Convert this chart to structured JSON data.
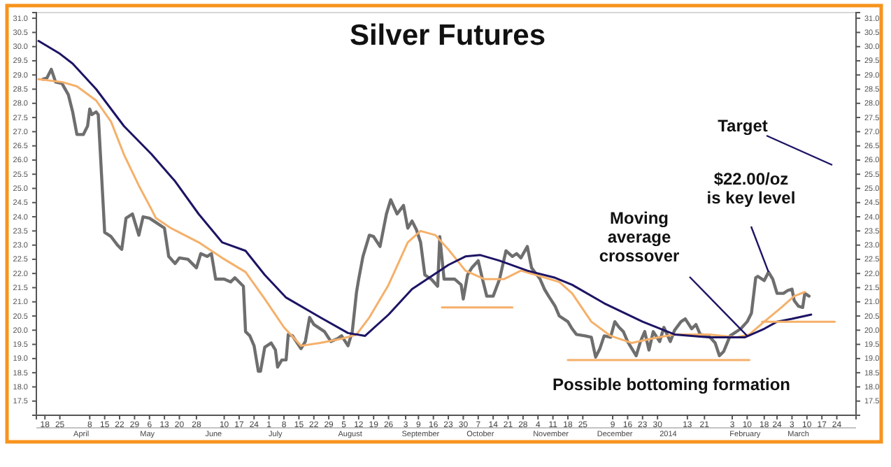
{
  "chart_data": {
    "type": "line",
    "title": "Silver Futures",
    "xlim": [
      "2013-03-14",
      "2014-04-02"
    ],
    "xticks": [
      {
        "value": "2013-03-18",
        "label": "18"
      },
      {
        "value": "2013-03-25",
        "label": "25"
      },
      {
        "value": "2013-04-08",
        "label": "8"
      },
      {
        "value": "2013-04-15",
        "label": "15"
      },
      {
        "value": "2013-04-22",
        "label": "22"
      },
      {
        "value": "2013-04-29",
        "label": "29"
      },
      {
        "value": "2013-05-06",
        "label": "6"
      },
      {
        "value": "2013-05-13",
        "label": "13"
      },
      {
        "value": "2013-05-20",
        "label": "20"
      },
      {
        "value": "2013-05-28",
        "label": "28"
      },
      {
        "value": "2013-06-10",
        "label": "10"
      },
      {
        "value": "2013-06-17",
        "label": "17"
      },
      {
        "value": "2013-06-24",
        "label": "24"
      },
      {
        "value": "2013-07-01",
        "label": "1"
      },
      {
        "value": "2013-07-08",
        "label": "8"
      },
      {
        "value": "2013-07-15",
        "label": "15"
      },
      {
        "value": "2013-07-22",
        "label": "22"
      },
      {
        "value": "2013-07-29",
        "label": "29"
      },
      {
        "value": "2013-08-05",
        "label": "5"
      },
      {
        "value": "2013-08-12",
        "label": "12"
      },
      {
        "value": "2013-08-19",
        "label": "19"
      },
      {
        "value": "2013-08-26",
        "label": "26"
      },
      {
        "value": "2013-09-03",
        "label": "3"
      },
      {
        "value": "2013-09-09",
        "label": "9"
      },
      {
        "value": "2013-09-16",
        "label": "16"
      },
      {
        "value": "2013-09-23",
        "label": "23"
      },
      {
        "value": "2013-09-30",
        "label": "30"
      },
      {
        "value": "2013-10-07",
        "label": "7"
      },
      {
        "value": "2013-10-14",
        "label": "14"
      },
      {
        "value": "2013-10-21",
        "label": "21"
      },
      {
        "value": "2013-10-28",
        "label": "28"
      },
      {
        "value": "2013-11-04",
        "label": "4"
      },
      {
        "value": "2013-11-11",
        "label": "11"
      },
      {
        "value": "2013-11-18",
        "label": "18"
      },
      {
        "value": "2013-11-25",
        "label": "25"
      },
      {
        "value": "2013-12-09",
        "label": "9"
      },
      {
        "value": "2013-12-16",
        "label": "16"
      },
      {
        "value": "2013-12-23",
        "label": "23"
      },
      {
        "value": "2013-12-30",
        "label": "30"
      },
      {
        "value": "2014-01-13",
        "label": "13"
      },
      {
        "value": "2014-01-21",
        "label": "21"
      },
      {
        "value": "2014-02-03",
        "label": "3"
      },
      {
        "value": "2014-02-10",
        "label": "10"
      },
      {
        "value": "2014-02-18",
        "label": "18"
      },
      {
        "value": "2014-02-24",
        "label": "24"
      },
      {
        "value": "2014-03-03",
        "label": "3"
      },
      {
        "value": "2014-03-10",
        "label": "10"
      },
      {
        "value": "2014-03-17",
        "label": "17"
      },
      {
        "value": "2014-03-24",
        "label": "24"
      }
    ],
    "x2lim": [
      "2013-03-14",
      "2014-04-02"
    ],
    "x2ticks": [
      {
        "value": "2013-04-04",
        "label": "April"
      },
      {
        "value": "2013-05-05",
        "label": "May"
      },
      {
        "value": "2013-06-05",
        "label": "June"
      },
      {
        "value": "2013-07-04",
        "label": "July"
      },
      {
        "value": "2013-08-08",
        "label": "August"
      },
      {
        "value": "2013-09-10",
        "label": "September"
      },
      {
        "value": "2013-10-08",
        "label": "October"
      },
      {
        "value": "2013-11-10",
        "label": "November"
      },
      {
        "value": "2013-12-10",
        "label": "December"
      },
      {
        "value": "2014-01-04",
        "label": "2014"
      },
      {
        "value": "2014-02-09",
        "label": "February"
      },
      {
        "value": "2014-03-06",
        "label": "March"
      }
    ],
    "ylim": [
      17.0,
      31.2
    ],
    "yticks": [
      17.5,
      {
        "value": 18,
        "label": "18.0"
      },
      18.5,
      {
        "value": 19,
        "label": "19.0"
      },
      19.5,
      {
        "value": 20,
        "label": "20.0"
      },
      20.5,
      {
        "value": 21,
        "label": "21.0"
      },
      21.5,
      {
        "value": 22,
        "label": "22.0"
      },
      22.5,
      {
        "value": 23,
        "label": "23.0"
      },
      23.5,
      {
        "value": 24,
        "label": "24.0"
      },
      24.5,
      {
        "value": 25,
        "label": "25.0"
      },
      25.5,
      {
        "value": 26,
        "label": "26.0"
      },
      26.5,
      {
        "value": 27,
        "label": "27.0"
      },
      27.5,
      {
        "value": 28,
        "label": "28.0"
      },
      28.5,
      {
        "value": 29,
        "label": "29.0"
      },
      29.5,
      {
        "value": 30,
        "label": "30.0"
      },
      30.5,
      {
        "value": 31,
        "label": "31.0"
      }
    ],
    "y2lim": [
      17.0,
      31.2
    ],
    "y2ticks": [
      17.5,
      {
        "value": 18,
        "label": "18.0"
      },
      18.5,
      {
        "value": 19,
        "label": "19.0"
      },
      19.5,
      {
        "value": 20,
        "label": "20.0"
      },
      20.5,
      {
        "value": 21,
        "label": "21.0"
      },
      21.5,
      {
        "value": 22,
        "label": "22.0"
      },
      22.5,
      {
        "value": 23,
        "label": "23.0"
      },
      23.5,
      {
        "value": 24,
        "label": "24.0"
      },
      24.5,
      {
        "value": 25,
        "label": "25.0"
      },
      25.5,
      {
        "value": 26,
        "label": "26.0"
      },
      26.5,
      {
        "value": 27,
        "label": "27.0"
      },
      27.5,
      {
        "value": 28,
        "label": "28.0"
      },
      28.5,
      {
        "value": 29,
        "label": "29.0"
      },
      29.5,
      {
        "value": 30,
        "label": "30.0"
      },
      30.5,
      {
        "value": 31,
        "label": "31.0"
      }
    ],
    "series": [
      {
        "type": "line",
        "color": "#6e6e6e",
        "x": [
          "2013-03-17",
          "2013-03-19",
          "2013-03-21",
          "2013-03-23",
          "2013-03-26",
          "2013-03-29",
          "2013-03-31",
          "2013-04-02",
          "2013-04-05",
          "2013-04-07",
          "2013-04-08",
          "2013-04-09",
          "2013-04-11",
          "2013-04-12",
          "2013-04-15",
          "2013-04-18",
          "2013-04-21",
          "2013-04-23",
          "2013-04-25",
          "2013-04-28",
          "2013-05-01",
          "2013-05-03",
          "2013-05-06",
          "2013-05-09",
          "2013-05-13",
          "2013-05-15",
          "2013-05-18",
          "2013-05-20",
          "2013-05-24",
          "2013-05-28",
          "2013-05-30",
          "2013-06-02",
          "2013-06-04",
          "2013-06-06",
          "2013-06-10",
          "2013-06-13",
          "2013-06-15",
          "2013-06-19",
          "2013-06-20",
          "2013-06-22",
          "2013-06-24",
          "2013-06-26",
          "2013-06-27",
          "2013-06-29",
          "2013-07-02",
          "2013-07-04",
          "2013-07-05",
          "2013-07-07",
          "2013-07-09",
          "2013-07-10",
          "2013-07-12",
          "2013-07-16",
          "2013-07-18",
          "2013-07-20",
          "2013-07-22",
          "2013-07-27",
          "2013-07-30",
          "2013-08-02",
          "2013-08-04",
          "2013-08-07",
          "2013-08-09",
          "2013-08-11",
          "2013-08-12",
          "2013-08-14",
          "2013-08-17",
          "2013-08-19",
          "2013-08-22",
          "2013-08-25",
          "2013-08-27",
          "2013-08-30",
          "2013-09-02",
          "2013-09-04",
          "2013-09-06",
          "2013-09-08",
          "2013-09-10",
          "2013-09-12",
          "2013-09-15",
          "2013-09-18",
          "2013-09-19",
          "2013-09-21",
          "2013-09-23",
          "2013-09-26",
          "2013-09-29",
          "2013-09-30",
          "2013-10-02",
          "2013-10-04",
          "2013-10-07",
          "2013-10-09",
          "2013-10-11",
          "2013-10-14",
          "2013-10-17",
          "2013-10-20",
          "2013-10-23",
          "2013-10-25",
          "2013-10-27",
          "2013-10-30",
          "2013-11-01",
          "2013-11-05",
          "2013-11-07",
          "2013-11-09",
          "2013-11-12",
          "2013-11-14",
          "2013-11-18",
          "2013-11-20",
          "2013-11-22",
          "2013-11-26",
          "2013-11-29",
          "2013-12-01",
          "2013-12-03",
          "2013-12-05",
          "2013-12-08",
          "2013-12-10",
          "2013-12-12",
          "2013-12-14",
          "2013-12-16",
          "2013-12-20",
          "2013-12-22",
          "2013-12-24",
          "2013-12-26",
          "2013-12-28",
          "2013-12-31",
          "2014-01-02",
          "2014-01-05",
          "2014-01-07",
          "2014-01-10",
          "2014-01-12",
          "2014-01-15",
          "2014-01-17",
          "2014-01-19",
          "2014-01-23",
          "2014-01-26",
          "2014-01-28",
          "2014-01-30",
          "2014-02-02",
          "2014-02-04",
          "2014-02-07",
          "2014-02-10",
          "2014-02-12",
          "2014-02-14",
          "2014-02-15",
          "2014-02-18",
          "2014-02-20",
          "2014-02-22",
          "2014-02-24",
          "2014-02-27",
          "2014-03-01",
          "2014-03-03",
          "2014-03-04",
          "2014-03-06",
          "2014-03-08",
          "2014-03-09",
          "2014-03-11"
        ],
        "values": [
          28.85,
          28.9,
          29.2,
          28.75,
          28.7,
          28.3,
          27.7,
          26.9,
          26.9,
          27.2,
          27.8,
          27.6,
          27.7,
          27.6,
          23.45,
          23.3,
          23.0,
          22.85,
          23.95,
          24.1,
          23.35,
          24.0,
          23.95,
          23.8,
          23.6,
          22.6,
          22.35,
          22.55,
          22.5,
          22.2,
          22.7,
          22.6,
          22.7,
          21.8,
          21.8,
          21.7,
          21.85,
          21.55,
          19.95,
          19.8,
          19.45,
          18.55,
          18.55,
          19.4,
          19.55,
          19.3,
          18.7,
          18.95,
          18.95,
          19.85,
          19.8,
          19.35,
          19.6,
          20.45,
          20.2,
          19.95,
          19.6,
          19.7,
          19.8,
          19.45,
          19.95,
          21.35,
          21.8,
          22.6,
          23.35,
          23.3,
          22.95,
          24.1,
          24.6,
          24.1,
          24.4,
          23.6,
          23.85,
          23.55,
          23.1,
          21.95,
          21.8,
          21.55,
          23.3,
          21.8,
          21.8,
          21.8,
          21.6,
          21.1,
          21.95,
          22.2,
          22.45,
          21.8,
          21.2,
          21.2,
          21.8,
          22.8,
          22.6,
          22.7,
          22.55,
          22.95,
          22.2,
          21.8,
          21.45,
          21.2,
          20.85,
          20.5,
          20.3,
          20.05,
          19.85,
          19.8,
          19.75,
          19.05,
          19.35,
          19.8,
          19.75,
          20.3,
          20.1,
          19.95,
          19.6,
          19.1,
          19.6,
          19.95,
          19.3,
          19.95,
          19.6,
          20.1,
          19.6,
          20.0,
          20.3,
          20.4,
          20.05,
          20.2,
          19.85,
          19.8,
          19.55,
          19.1,
          19.25,
          19.8,
          19.9,
          20.05,
          20.3,
          20.6,
          21.85,
          21.9,
          21.75,
          22.05,
          21.8,
          21.3,
          21.3,
          21.4,
          21.45,
          21.05,
          20.85,
          20.8,
          21.3,
          21.2
        ]
      },
      {
        "type": "line",
        "color": "#f5b06a",
        "x": [
          "2013-03-15",
          "2013-03-26",
          "2013-04-02",
          "2013-04-11",
          "2013-04-18",
          "2013-04-24",
          "2013-05-01",
          "2013-05-07",
          "2013-05-09",
          "2013-05-16",
          "2013-05-29",
          "2013-06-09",
          "2013-06-20",
          "2013-06-29",
          "2013-07-08",
          "2013-07-16",
          "2013-07-25",
          "2013-08-04",
          "2013-08-11",
          "2013-08-17",
          "2013-08-26",
          "2013-09-04",
          "2013-09-10",
          "2013-09-17",
          "2013-09-23",
          "2013-10-01",
          "2013-10-10",
          "2013-10-19",
          "2013-10-27",
          "2013-11-03",
          "2013-11-14",
          "2013-11-20",
          "2013-11-29",
          "2013-12-08",
          "2013-12-18",
          "2013-12-27",
          "2014-01-07",
          "2014-01-23",
          "2014-02-05",
          "2014-02-11",
          "2014-02-18",
          "2014-02-26",
          "2014-03-04",
          "2014-03-09"
        ],
        "values": [
          28.85,
          28.75,
          28.6,
          28.1,
          27.35,
          26.2,
          25.1,
          24.25,
          23.95,
          23.6,
          23.1,
          22.55,
          22.05,
          21.1,
          20.1,
          19.45,
          19.55,
          19.7,
          19.85,
          20.45,
          21.6,
          23.1,
          23.5,
          23.35,
          22.85,
          22.1,
          21.8,
          21.8,
          22.1,
          21.95,
          21.7,
          21.3,
          20.3,
          19.8,
          19.55,
          19.7,
          19.85,
          19.85,
          19.75,
          19.85,
          20.3,
          20.8,
          21.2,
          21.35
        ]
      },
      {
        "type": "line",
        "color": "#1c1464",
        "x": [
          "2013-03-15",
          "2013-03-25",
          "2013-03-31",
          "2013-04-11",
          "2013-04-24",
          "2013-05-07",
          "2013-05-18",
          "2013-05-29",
          "2013-06-09",
          "2013-06-20",
          "2013-06-29",
          "2013-07-09",
          "2013-07-25",
          "2013-08-07",
          "2013-08-15",
          "2013-08-26",
          "2013-09-06",
          "2013-09-17",
          "2013-09-23",
          "2013-10-01",
          "2013-10-08",
          "2013-10-17",
          "2013-10-30",
          "2013-11-12",
          "2013-11-20",
          "2013-12-05",
          "2013-12-23",
          "2014-01-07",
          "2014-01-23",
          "2014-02-09",
          "2014-02-18",
          "2014-02-24",
          "2014-03-03",
          "2014-03-12"
        ],
        "values": [
          30.2,
          29.75,
          29.4,
          28.5,
          27.2,
          26.2,
          25.25,
          24.1,
          23.1,
          22.8,
          21.95,
          21.15,
          20.45,
          19.9,
          19.8,
          20.55,
          21.45,
          22.0,
          22.3,
          22.6,
          22.65,
          22.45,
          22.1,
          21.85,
          21.6,
          20.95,
          20.3,
          19.85,
          19.75,
          19.75,
          20.05,
          20.3,
          20.4,
          20.55
        ]
      },
      {
        "type": "line",
        "color": "#f5b06a",
        "x": [
          "2013-09-20",
          "2013-10-23"
        ],
        "values": [
          20.8,
          20.8
        ]
      },
      {
        "type": "line",
        "color": "#f5b06a",
        "x": [
          "2013-11-18",
          "2014-02-11"
        ],
        "values": [
          18.95,
          18.95
        ]
      },
      {
        "type": "line",
        "color": "#f5b06a",
        "x": [
          "2014-02-17",
          "2014-03-23"
        ],
        "values": [
          20.3,
          20.3
        ]
      }
    ],
    "annotations": [
      "Target",
      {
        "text": "$22.00/oz\nis key level",
        "x": "2014-02-20",
        "y": 22.05
      },
      {
        "text": "Moving\naverage\ncrossover",
        "x": "2014-02-10",
        "y": 19.8
      },
      "Possible bottoming formation"
    ]
  }
}
